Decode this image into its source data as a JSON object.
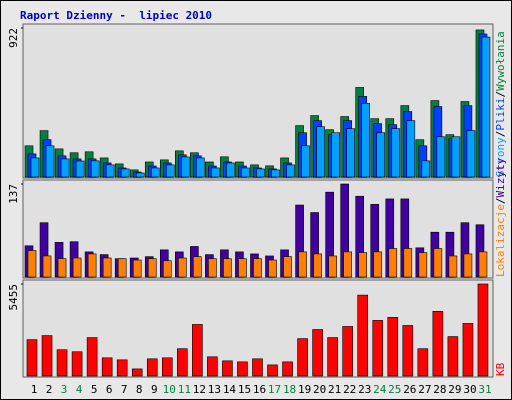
{
  "title": "Raport Dzienny -  lipiec 2010",
  "chart_data": [
    {
      "type": "bar",
      "ylim": [
        0,
        922
      ],
      "yticks": [
        922
      ],
      "legend_separator": "/",
      "series": [
        {
          "name": "Wywołania",
          "color": "#008040",
          "values": [
            193,
            287,
            174,
            150,
            156,
            118,
            81,
            44,
            93,
            106,
            162,
            150,
            93,
            125,
            93,
            75,
            69,
            118,
            318,
            380,
            293,
            374,
            554,
            361,
            361,
            442,
            231,
            473,
            262,
            467,
            910
          ]
        },
        {
          "name": "Pliki",
          "color": "#0040ff",
          "values": [
            143,
            231,
            131,
            112,
            112,
            87,
            56,
            31,
            68,
            87,
            137,
            131,
            68,
            93,
            68,
            56,
            50,
            87,
            274,
            349,
            262,
            349,
            499,
            330,
            324,
            405,
            193,
            436,
            237,
            442,
            885
          ]
        },
        {
          "name": "Strony",
          "color": "#00a0ff",
          "values": [
            118,
            193,
            112,
            99,
            100,
            75,
            50,
            25,
            56,
            75,
            124,
            118,
            56,
            87,
            56,
            50,
            44,
            75,
            193,
            311,
            274,
            299,
            455,
            274,
            299,
            349,
            100,
            249,
            249,
            287,
            866
          ]
        }
      ]
    },
    {
      "type": "bar",
      "ylim": [
        0,
        137
      ],
      "yticks": [
        137
      ],
      "legend_separator": "/",
      "series": [
        {
          "name": "Wizyty",
          "color": "#4000a0",
          "values": [
            46,
            80,
            51,
            52,
            37,
            33,
            27,
            28,
            30,
            40,
            37,
            45,
            33,
            40,
            37,
            34,
            31,
            40,
            106,
            95,
            125,
            137,
            119,
            107,
            115,
            115,
            43,
            66,
            66,
            80,
            77
          ]
        },
        {
          "name": "Lokalizacje",
          "color": "#ff8000",
          "values": [
            39,
            31,
            27,
            28,
            34,
            28,
            27,
            25,
            27,
            24,
            28,
            30,
            27,
            27,
            27,
            27,
            25,
            30,
            37,
            34,
            31,
            37,
            36,
            37,
            42,
            42,
            36,
            42,
            31,
            34,
            37
          ]
        }
      ]
    },
    {
      "type": "bar",
      "ylim": [
        0,
        5455
      ],
      "yticks": [
        5455
      ],
      "categories": [
        "1",
        "2",
        "3",
        "4",
        "5",
        "6",
        "7",
        "8",
        "9",
        "10",
        "11",
        "12",
        "13",
        "14",
        "15",
        "16",
        "17",
        "18",
        "19",
        "20",
        "21",
        "22",
        "23",
        "24",
        "25",
        "26",
        "27",
        "28",
        "29",
        "30",
        "31"
      ],
      "label_colors": [
        "#000000",
        "#000000",
        "#008040",
        "#008040",
        "#000000",
        "#000000",
        "#000000",
        "#000000",
        "#000000",
        "#008040",
        "#008040",
        "#000000",
        "#000000",
        "#000000",
        "#000000",
        "#000000",
        "#008040",
        "#008040",
        "#000000",
        "#000000",
        "#000000",
        "#000000",
        "#000000",
        "#008040",
        "#008040",
        "#000000",
        "#000000",
        "#000000",
        "#000000",
        "#000000",
        "#008040"
      ],
      "series": [
        {
          "name": "KB",
          "color": "#ff0000",
          "values": [
            2158,
            2398,
            1559,
            1439,
            2278,
            1079,
            959,
            420,
            1019,
            1079,
            1619,
            3057,
            1139,
            899,
            839,
            1019,
            659,
            839,
            2218,
            2758,
            2278,
            2937,
            4796,
            3297,
            3477,
            2997,
            1619,
            3836,
            2338,
            3117,
            5455
          ]
        }
      ]
    }
  ]
}
